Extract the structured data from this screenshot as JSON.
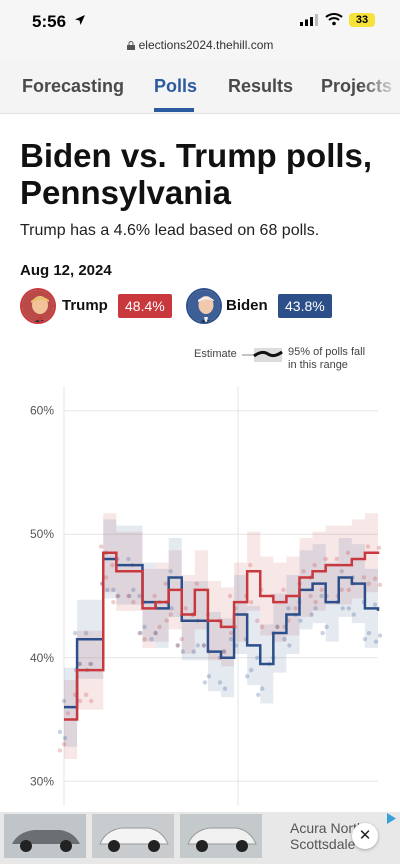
{
  "status": {
    "time": "5:56",
    "battery": "33",
    "url": "elections2024.thehill.com"
  },
  "nav": {
    "tabs": [
      "Forecasting",
      "Polls",
      "Results",
      "Projects"
    ],
    "active": "Polls"
  },
  "page": {
    "title": "Biden vs. Trump polls, Pennsylvania",
    "subtitle": "Trump has a 4.6% lead based on 68 polls.",
    "date": "Aug 12, 2024"
  },
  "candidates": [
    {
      "name": "Trump",
      "pct": "48.4%",
      "color": "#c8383d"
    },
    {
      "name": "Biden",
      "pct": "43.8%",
      "color": "#2c4f8a"
    }
  ],
  "legend": {
    "estimate": "Estimate",
    "range_line1": "95% of polls fall",
    "range_line2": "in this range"
  },
  "ad": {
    "text": "Acura North Scottsdale",
    "close": "✕"
  },
  "colors": {
    "trump": "#c8383d",
    "biden": "#2c4f8a",
    "accent": "#2c5aa0"
  },
  "chart_data": {
    "type": "line",
    "ylim": [
      28,
      62
    ],
    "yticks": [
      "60%",
      "50%",
      "40%",
      "30%"
    ],
    "ytick_values": [
      60,
      50,
      40,
      30
    ],
    "x": [
      0,
      1,
      2,
      3,
      4,
      5,
      6,
      7,
      8,
      9,
      10,
      11,
      12,
      13,
      14,
      15,
      16,
      17,
      18,
      19,
      20,
      21,
      22,
      23,
      24
    ],
    "series": [
      {
        "name": "Trump",
        "color": "#c8383d",
        "values": [
          35,
          39,
          39,
          48.5,
          47,
          47,
          44,
          44.5,
          45.5,
          43.5,
          45.5,
          43,
          42.5,
          44.5,
          47,
          45,
          44.5,
          45,
          46.5,
          47,
          47.5,
          47.5,
          48,
          48.5,
          48.4
        ]
      },
      {
        "name": "Biden",
        "color": "#2c4f8a",
        "values": [
          36,
          41.5,
          41.5,
          48,
          47.5,
          47.5,
          44.5,
          44,
          46.5,
          43,
          43,
          40.5,
          40,
          43.5,
          41,
          39.5,
          42,
          43.5,
          45.5,
          46,
          44.5,
          46.5,
          46,
          44,
          43.8
        ]
      }
    ]
  }
}
